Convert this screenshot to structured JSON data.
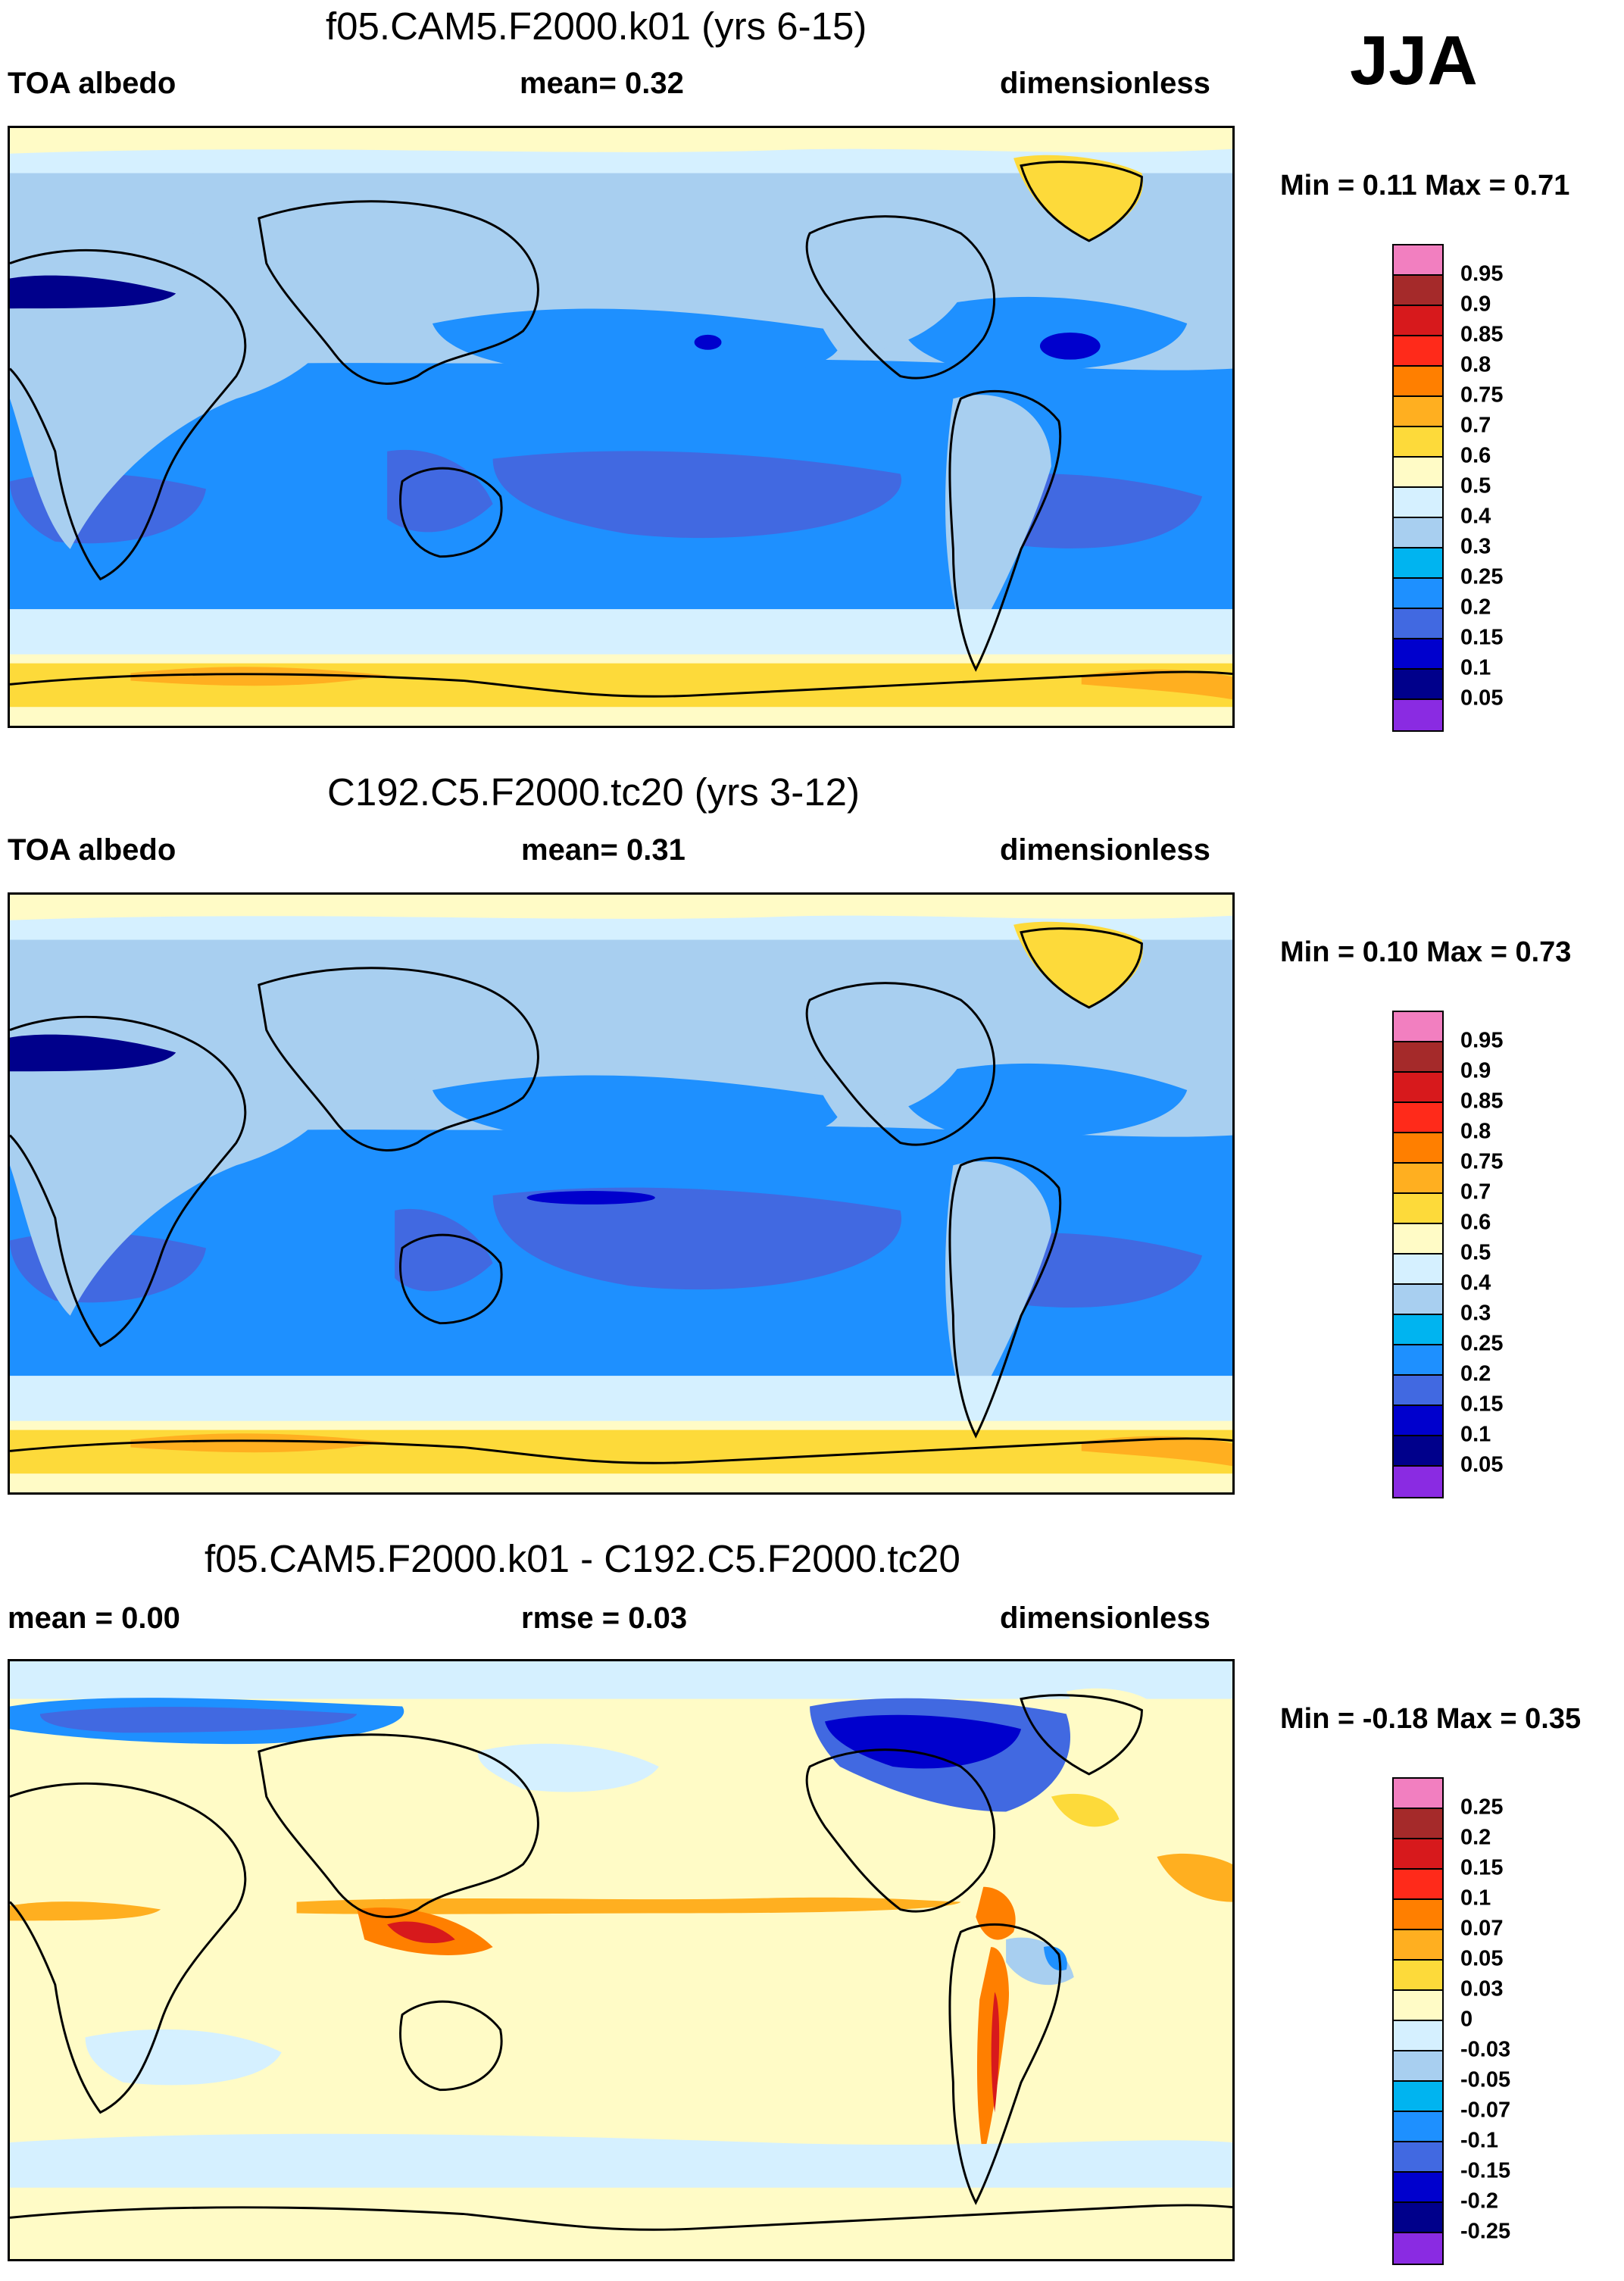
{
  "season": "JJA",
  "panels": [
    {
      "title": "f05.CAM5.F2000.k01 (yrs 6-15)",
      "left_label": "TOA albedo",
      "center_label": "mean=   0.32",
      "right_label": "dimensionless",
      "minmax": "Min =   0.11 Max =   0.71",
      "legend_labels": [
        "0.95",
        "0.9",
        "0.85",
        "0.8",
        "0.75",
        "0.7",
        "0.6",
        "0.5",
        "0.4",
        "0.3",
        "0.25",
        "0.2",
        "0.15",
        "0.1",
        "0.05"
      ]
    },
    {
      "title": "C192.C5.F2000.tc20 (yrs 3-12)",
      "left_label": "TOA albedo",
      "center_label": "mean=   0.31",
      "right_label": "dimensionless",
      "minmax": "Min =   0.10 Max =   0.73",
      "legend_labels": [
        "0.95",
        "0.9",
        "0.85",
        "0.8",
        "0.75",
        "0.7",
        "0.6",
        "0.5",
        "0.4",
        "0.3",
        "0.25",
        "0.2",
        "0.15",
        "0.1",
        "0.05"
      ]
    },
    {
      "title": "f05.CAM5.F2000.k01 - C192.C5.F2000.tc20",
      "left_label": "mean =   0.00",
      "center_label": "rmse =   0.03",
      "right_label": "dimensionless",
      "minmax": "Min =  -0.18 Max =   0.35",
      "legend_labels": [
        "0.25",
        "0.2",
        "0.15",
        "0.1",
        "0.07",
        "0.05",
        "0.03",
        "0",
        "-0.03",
        "-0.05",
        "-0.07",
        "-0.1",
        "-0.15",
        "-0.2",
        "-0.25"
      ]
    }
  ],
  "legend_colors": [
    "#f27fc0",
    "#a52a2a",
    "#d7191c",
    "#ff2a1a",
    "#ff7f00",
    "#ffaf20",
    "#fdda3a",
    "#fffbc6",
    "#d5f0ff",
    "#a8cff0",
    "#00b4f0",
    "#1e90ff",
    "#4169e1",
    "#0000cd",
    "#00008b",
    "#8a2be2"
  ],
  "palette": {
    "ocean_blue": "#1e90ff",
    "deep_blue": "#4169e1",
    "light_blue": "#a8cff0",
    "pale_blue": "#d5f0ff",
    "cream": "#fffbc6",
    "yellow": "#fdda3a",
    "orange": "#ffaf20"
  }
}
